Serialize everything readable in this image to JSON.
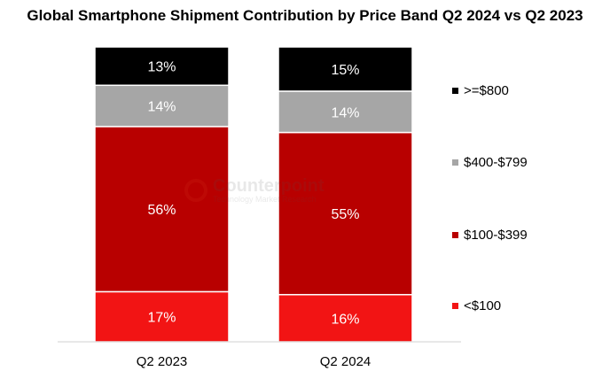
{
  "chart_data": {
    "type": "bar",
    "stacked": true,
    "title": "Global Smartphone Shipment Contribution by Price Band Q2 2024 vs Q2 2023",
    "categories": [
      "Q2 2023",
      "Q2 2024"
    ],
    "series": [
      {
        "name": "<$100",
        "values": [
          17,
          16
        ],
        "color": "#f21414"
      },
      {
        "name": "$100-$399",
        "values": [
          56,
          55
        ],
        "color": "#b80000"
      },
      {
        "name": "$400-$799",
        "values": [
          14,
          14
        ],
        "color": "#a6a6a6"
      },
      {
        "name": ">=$800",
        "values": [
          13,
          15
        ],
        "color": "#000000"
      }
    ],
    "legend_order": [
      ">=$800",
      "$400-$799",
      "$100-$399",
      "<$100"
    ],
    "value_suffix": "%",
    "ylim": [
      0,
      100
    ],
    "legend_position": "right",
    "grid": false
  },
  "watermark": {
    "name": "Counterpoint",
    "tagline": "Technology Market Research"
  }
}
